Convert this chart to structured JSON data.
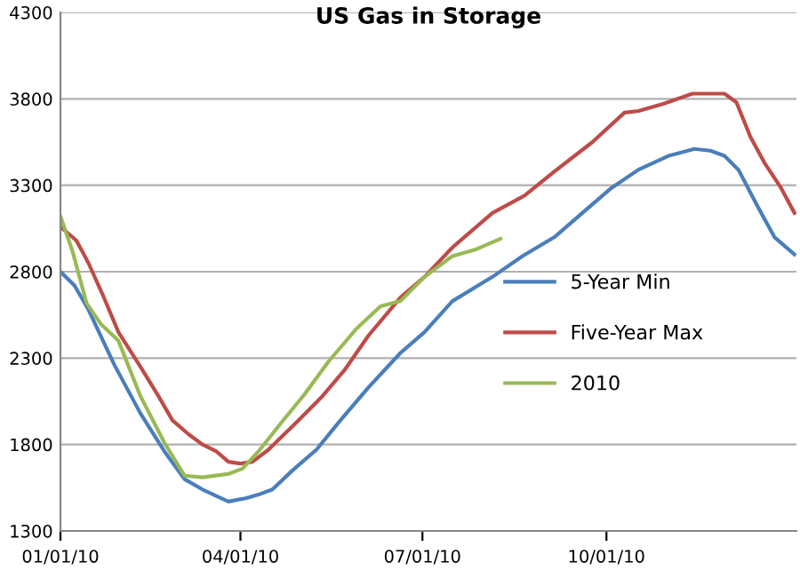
{
  "chart_data": {
    "type": "line",
    "title": "US Gas in Storage",
    "series": [
      {
        "name": "5-Year Min",
        "color": "#4a7ebb",
        "x": [
          "2010-01-01",
          "2010-01-08",
          "2010-01-15",
          "2010-01-28",
          "2010-02-10",
          "2010-02-22",
          "2010-03-04",
          "2010-03-13",
          "2010-03-26",
          "2010-04-04",
          "2010-04-10",
          "2010-04-17",
          "2010-04-27",
          "2010-05-09",
          "2010-05-21",
          "2010-06-04",
          "2010-06-20",
          "2010-07-02",
          "2010-07-16",
          "2010-08-05",
          "2010-08-20",
          "2010-09-05",
          "2010-09-21",
          "2010-10-03",
          "2010-10-17",
          "2010-11-01",
          "2010-11-14",
          "2010-11-22",
          "2010-11-29",
          "2010-12-06",
          "2010-12-15",
          "2010-12-24",
          "2011-01-03"
        ],
        "values": [
          2800,
          2720,
          2580,
          2260,
          1980,
          1760,
          1600,
          1540,
          1470,
          1490,
          1510,
          1540,
          1650,
          1770,
          1940,
          2130,
          2330,
          2450,
          2630,
          2770,
          2890,
          3000,
          3160,
          3280,
          3390,
          3470,
          3510,
          3500,
          3470,
          3390,
          3190,
          3000,
          2900
        ]
      },
      {
        "name": "Five-Year Max",
        "color": "#be4b48",
        "x": [
          "2010-01-01",
          "2010-01-09",
          "2010-01-15",
          "2010-01-22",
          "2010-01-30",
          "2010-02-10",
          "2010-02-19",
          "2010-02-26",
          "2010-03-06",
          "2010-03-13",
          "2010-03-20",
          "2010-03-26",
          "2010-04-01",
          "2010-04-07",
          "2010-04-15",
          "2010-04-30",
          "2010-05-12",
          "2010-05-23",
          "2010-06-04",
          "2010-06-20",
          "2010-07-02",
          "2010-07-16",
          "2010-08-05",
          "2010-08-21",
          "2010-09-05",
          "2010-09-24",
          "2010-10-10",
          "2010-10-17",
          "2010-10-29",
          "2010-11-13",
          "2010-11-22",
          "2010-11-29",
          "2010-12-05",
          "2010-12-12",
          "2010-12-19",
          "2010-12-27",
          "2011-01-03"
        ],
        "values": [
          3060,
          2980,
          2850,
          2670,
          2450,
          2250,
          2080,
          1940,
          1860,
          1800,
          1760,
          1700,
          1690,
          1700,
          1770,
          1940,
          2080,
          2230,
          2430,
          2650,
          2770,
          2940,
          3140,
          3240,
          3380,
          3550,
          3720,
          3730,
          3770,
          3830,
          3830,
          3830,
          3780,
          3580,
          3430,
          3290,
          3140
        ]
      },
      {
        "name": "2010",
        "color": "#98b954",
        "x": [
          "2010-01-01",
          "2010-01-07",
          "2010-01-14",
          "2010-01-21",
          "2010-01-30",
          "2010-02-10",
          "2010-02-22",
          "2010-03-04",
          "2010-03-13",
          "2010-03-26",
          "2010-04-02",
          "2010-04-10",
          "2010-04-21",
          "2010-05-03",
          "2010-05-15",
          "2010-05-29",
          "2010-06-10",
          "2010-06-20",
          "2010-07-02",
          "2010-07-16",
          "2010-07-28",
          "2010-08-09"
        ],
        "values": [
          3120,
          2920,
          2620,
          2500,
          2400,
          2080,
          1810,
          1620,
          1610,
          1630,
          1660,
          1760,
          1920,
          2090,
          2280,
          2470,
          2600,
          2630,
          2770,
          2890,
          2930,
          2990
        ]
      }
    ],
    "xlim": [
      "2010-01-01",
      "2011-01-04"
    ],
    "xticks": [
      {
        "value": "2010-01-01",
        "label": "01/01/10"
      },
      {
        "value": "2010-04-01",
        "label": "04/01/10"
      },
      {
        "value": "2010-07-01",
        "label": "07/01/10"
      },
      {
        "value": "2010-10-01",
        "label": "10/01/10"
      }
    ],
    "ylim": [
      1300,
      4300
    ],
    "yticks": [
      1300,
      1800,
      2300,
      2800,
      3300,
      3800,
      4300
    ],
    "grid": "y",
    "legend": "right",
    "marker": "none",
    "line_style": "solid"
  }
}
